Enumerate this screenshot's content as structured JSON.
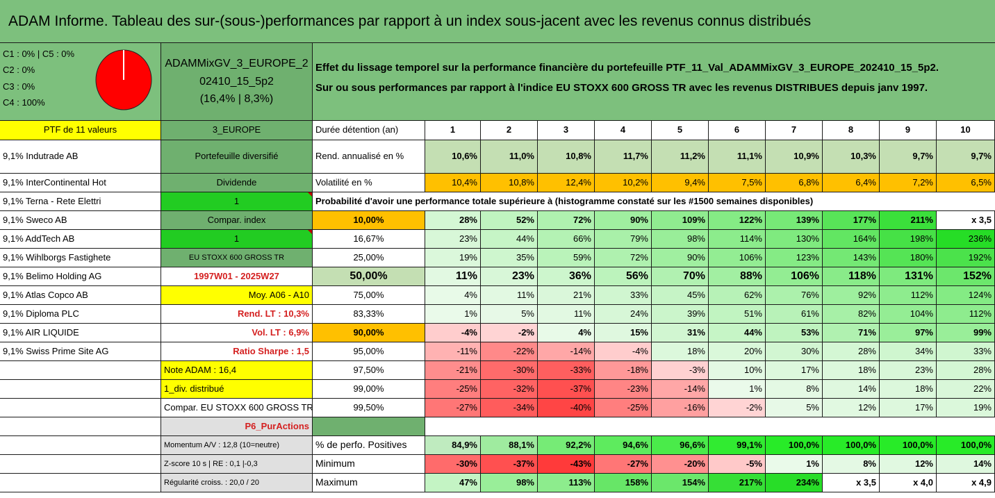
{
  "title": "ADAM Informe. Tableau des sur-(sous-)performances par rapport à un index sous-jacent avec les revenus connus distribués",
  "legend": [
    "C1 : 0% | C5 : 0%",
    "C2 : 0%",
    "C3 : 0%",
    "C4 : 100%"
  ],
  "pie_chart": {
    "type": "pie",
    "values": [
      0,
      0,
      0,
      100,
      0
    ],
    "labels": [
      "C1",
      "C2",
      "C3",
      "C4",
      "C5"
    ],
    "colors": {
      "C4": "#ff0000"
    }
  },
  "portfolio_name": [
    "ADAMMixGV_3_EUROPE_2",
    "02410_15_5p2",
    "(16,4% | 8,3%)"
  ],
  "description": [
    "Effet du lissage temporel sur la performance financière du portefeuille PTF_11_Val_ADAMMixGV_3_EUROPE_202410_15_5p2.",
    "Sur ou sous performances par rapport à l'indice EU STOXX 600 GROSS TR avec les revenus DISTRIBUES depuis janv 1997."
  ],
  "colors": {
    "band": "#7dc07d",
    "mid": "#6fb06f",
    "yellow": "#ffff00",
    "orange": "#ffc000",
    "green": "#22cc22",
    "lightgreen": "#c4dfb3",
    "redtext": "#d41f1f"
  },
  "left_header": "PTF de 11 valeurs",
  "holdings": [
    "9,1% Indutrade AB",
    "9,1% InterContinental Hot",
    "9,1% Terna - Rete Elettri",
    "9,1% Sweco AB",
    "9,1% AddTech AB",
    "9,1% Wihlborgs Fastighete",
    "9,1% Belimo Holding AG",
    "9,1% Atlas Copco AB",
    "9,1% Diploma PLC",
    "9,1% AIR LIQUIDE",
    "9,1% Swiss Prime Site AG"
  ],
  "info": {
    "region": "3_EUROPE",
    "diversified": "Portefeuille diversifié",
    "dividend_label": "Dividende",
    "dividend_value": "1",
    "compare_label": "Compar. index",
    "compare_value": "1",
    "index_name": "EU STOXX 600 GROSS TR",
    "period": "1997W01 - 2025W27",
    "average": "Moy. A06 - A10",
    "rend_lt": "Rend. LT : 10,3%",
    "vol_lt": "Vol. LT : 6,9%",
    "sharpe": "Ratio Sharpe : 1,5",
    "note": "Note ADAM : 16,4",
    "div": "1_div. distribué",
    "compar_full": "Compar. EU STOXX 600 GROSS TR",
    "p6": "P6_PurActions",
    "momentum": "Momentum A/V : 12,8 (10=neutre)",
    "zscore": "Z-score 10 s | RE : 0,1 |-0,3",
    "regularity": "Régularité croiss. : 20,0 / 20"
  },
  "table": {
    "duration_label": "Durée détention (an)",
    "years": [
      "1",
      "2",
      "3",
      "4",
      "5",
      "6",
      "7",
      "8",
      "9",
      "10"
    ],
    "rend_label": "Rend. annualisé en %",
    "rend": [
      "10,6%",
      "11,0%",
      "10,8%",
      "11,7%",
      "11,2%",
      "11,1%",
      "10,9%",
      "10,3%",
      "9,7%",
      "9,7%"
    ],
    "vol_label": "Volatilité en %",
    "vol": [
      "10,4%",
      "10,8%",
      "12,4%",
      "10,2%",
      "9,4%",
      "7,5%",
      "6,8%",
      "6,4%",
      "7,2%",
      "6,5%"
    ],
    "prob_title": "Probabilité d'avoir une performance totale supérieure à (histogramme constaté sur les #1500 semaines disponibles)",
    "prob_rows": [
      {
        "p": "10,00%",
        "v": [
          "28%",
          "52%",
          "72%",
          "90%",
          "109%",
          "122%",
          "139%",
          "177%",
          "211%",
          "x 3,5"
        ]
      },
      {
        "p": "16,67%",
        "v": [
          "23%",
          "44%",
          "66%",
          "79%",
          "98%",
          "114%",
          "130%",
          "164%",
          "198%",
          "236%"
        ]
      },
      {
        "p": "25,00%",
        "v": [
          "19%",
          "35%",
          "59%",
          "72%",
          "90%",
          "106%",
          "123%",
          "143%",
          "180%",
          "192%"
        ]
      },
      {
        "p": "50,00%",
        "v": [
          "11%",
          "23%",
          "36%",
          "56%",
          "70%",
          "88%",
          "106%",
          "118%",
          "131%",
          "152%"
        ]
      },
      {
        "p": "75,00%",
        "v": [
          "4%",
          "11%",
          "21%",
          "33%",
          "45%",
          "62%",
          "76%",
          "92%",
          "112%",
          "124%"
        ]
      },
      {
        "p": "83,33%",
        "v": [
          "1%",
          "5%",
          "11%",
          "24%",
          "39%",
          "51%",
          "61%",
          "82%",
          "104%",
          "112%"
        ]
      },
      {
        "p": "90,00%",
        "v": [
          "-4%",
          "-2%",
          "4%",
          "15%",
          "31%",
          "44%",
          "53%",
          "71%",
          "97%",
          "99%"
        ]
      },
      {
        "p": "95,00%",
        "v": [
          "-11%",
          "-22%",
          "-14%",
          "-4%",
          "18%",
          "20%",
          "30%",
          "28%",
          "34%",
          "33%"
        ]
      },
      {
        "p": "97,50%",
        "v": [
          "-21%",
          "-30%",
          "-33%",
          "-18%",
          "-3%",
          "10%",
          "17%",
          "18%",
          "23%",
          "28%"
        ]
      },
      {
        "p": "99,00%",
        "v": [
          "-25%",
          "-32%",
          "-37%",
          "-23%",
          "-14%",
          "1%",
          "8%",
          "14%",
          "18%",
          "22%"
        ]
      },
      {
        "p": "99,50%",
        "v": [
          "-27%",
          "-34%",
          "-40%",
          "-25%",
          "-16%",
          "-2%",
          "5%",
          "12%",
          "17%",
          "19%"
        ]
      }
    ],
    "positive_label": "% de perfo. Positives",
    "positive": [
      "84,9%",
      "88,1%",
      "92,2%",
      "94,6%",
      "96,6%",
      "99,1%",
      "100,0%",
      "100,0%",
      "100,0%",
      "100,0%"
    ],
    "min_label": "Minimum",
    "min": [
      "-30%",
      "-37%",
      "-43%",
      "-27%",
      "-20%",
      "-5%",
      "1%",
      "8%",
      "12%",
      "14%"
    ],
    "max_label": "Maximum",
    "max": [
      "47%",
      "98%",
      "113%",
      "158%",
      "154%",
      "217%",
      "234%",
      "x 3,5",
      "x 4,0",
      "x 4,9"
    ]
  }
}
